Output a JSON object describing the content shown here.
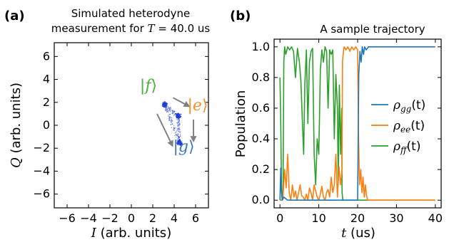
{
  "panels": [
    {
      "panel_label": "(a)",
      "title_line1": "Simulated heterodyne",
      "title_line2_prefix": "measurement for ",
      "title_line2_math": "T",
      "title_line2_suffix": " = 40.0 us"
    },
    {
      "panel_label": "(b)",
      "title": "A sample trajectory"
    }
  ],
  "chart_data": [
    {
      "type": "scatter",
      "title": "Simulated heterodyne measurement for T = 40.0 us",
      "xlabel_var": "I",
      "xlabel_unit": " (arb. units)",
      "ylabel_var": "Q",
      "ylabel_unit": " (arb. units)",
      "xlim": [
        -7.2,
        7.2
      ],
      "ylim": [
        -7.2,
        7.2
      ],
      "xticks": [
        -6,
        -4,
        -2,
        0,
        2,
        4,
        6
      ],
      "yticks": [
        -6,
        -4,
        -2,
        0,
        2,
        4,
        6
      ],
      "xtick_labels": [
        "−6",
        "−4",
        "−2",
        "0",
        "2",
        "4",
        "6"
      ],
      "ytick_labels": [
        "−6",
        "−4",
        "−2",
        "0",
        "2",
        "4",
        "6"
      ],
      "grid": false,
      "point_color": "#1f3fd8",
      "clusters": [
        {
          "x": 3.1,
          "y": 1.8
        },
        {
          "x": 4.4,
          "y": 0.8
        },
        {
          "x": 4.5,
          "y": -1.5
        }
      ],
      "transition_paths": [
        {
          "from": [
            3.1,
            1.8
          ],
          "to": [
            4.4,
            0.8
          ]
        },
        {
          "from": [
            4.4,
            0.8
          ],
          "to": [
            4.5,
            -1.5
          ]
        },
        {
          "from": [
            3.1,
            1.8
          ],
          "to": [
            4.5,
            -1.5
          ]
        }
      ],
      "state_labels": [
        {
          "text": "f",
          "x": 1.6,
          "y": 3.0,
          "color": "#4caf3e"
        },
        {
          "text": "e",
          "x": 6.2,
          "y": 1.3,
          "color": "#f5922f"
        },
        {
          "text": "g",
          "x": 4.9,
          "y": -2.3,
          "color": "#3a7bbf"
        }
      ],
      "arrows": [
        {
          "from": [
            3.9,
            2.4
          ],
          "to": [
            5.5,
            1.6
          ]
        },
        {
          "from": [
            5.8,
            0.5
          ],
          "to": [
            5.8,
            -1.5
          ]
        },
        {
          "from": [
            2.4,
            1.0
          ],
          "to": [
            3.9,
            -1.9
          ]
        }
      ],
      "arrow_color": "#808080"
    },
    {
      "type": "line",
      "title": "A sample trajectory",
      "xlabel_var": "t",
      "xlabel_unit": " (us)",
      "ylabel": "Population",
      "xlim": [
        -1.5,
        41.5
      ],
      "ylim": [
        -0.05,
        1.05
      ],
      "xticks": [
        0,
        10,
        20,
        30,
        40
      ],
      "yticks": [
        0.0,
        0.2,
        0.4,
        0.6,
        0.8,
        1.0
      ],
      "xtick_labels": [
        "0",
        "10",
        "20",
        "30",
        "40"
      ],
      "ytick_labels": [
        "0.0",
        "0.2",
        "0.4",
        "0.6",
        "0.8",
        "1.0"
      ],
      "grid": false,
      "legend_position": "center-right",
      "series": [
        {
          "name_base": "ρ",
          "name_sub": "gg",
          "name_tail": "(t)",
          "color": "#1f77b4",
          "x": [
            0,
            0.2,
            0.4,
            0.6,
            1.0,
            2,
            5,
            10,
            15,
            18,
            20,
            20.3,
            20.6,
            20.9,
            21.2,
            21.5,
            21.8,
            22.2,
            22.8,
            24,
            30,
            40
          ],
          "y": [
            0.0,
            0.21,
            0.05,
            0.0,
            0.02,
            0.0,
            0.0,
            0.0,
            0.0,
            0.0,
            0.0,
            0.82,
            0.97,
            0.9,
            1.0,
            0.95,
            1.0,
            0.98,
            1.0,
            1.0,
            1.0,
            1.0
          ]
        },
        {
          "name_base": "ρ",
          "name_sub": "ee",
          "name_tail": "(t)",
          "color": "#ff7f0e",
          "x": [
            0,
            0.5,
            0.8,
            1.2,
            1.6,
            2.0,
            2.4,
            2.8,
            3.2,
            3.6,
            4.0,
            4.4,
            4.8,
            5.2,
            5.6,
            6.0,
            6.4,
            6.8,
            7.2,
            7.6,
            8.0,
            8.4,
            8.8,
            9.2,
            9.6,
            10.0,
            10.4,
            10.8,
            11.2,
            11.6,
            12.0,
            12.4,
            12.8,
            13.2,
            13.6,
            14.0,
            14.4,
            14.8,
            15.2,
            15.6,
            16.0,
            16.1,
            16.3,
            16.5,
            17.0,
            17.5,
            18.0,
            18.5,
            19.0,
            19.5,
            20.0,
            20.2,
            20.5,
            20.8,
            21.1,
            21.4,
            21.7,
            22.0,
            22.3,
            22.6,
            23,
            30,
            40
          ],
          "y": [
            0.0,
            0.0,
            0.02,
            0.2,
            0.08,
            0.3,
            0.05,
            0.0,
            0.1,
            0.02,
            0.06,
            0.0,
            0.05,
            0.1,
            0.03,
            0.02,
            0.0,
            0.04,
            0.0,
            0.08,
            0.05,
            0.0,
            0.1,
            0.06,
            0.02,
            0.0,
            0.04,
            0.09,
            0.02,
            0.0,
            0.05,
            0.07,
            0.02,
            0.15,
            0.05,
            0.1,
            0.3,
            0.02,
            0.22,
            0.1,
            0.2,
            0.9,
            0.96,
            1.0,
            0.98,
            1.0,
            0.97,
            1.0,
            0.98,
            1.0,
            0.98,
            0.45,
            0.1,
            0.2,
            0.05,
            0.15,
            0.02,
            0.1,
            0.03,
            0.0,
            0.0,
            0.0,
            0.0
          ]
        },
        {
          "name_base": "ρ",
          "name_sub": "ff",
          "name_tail": "(t)",
          "color": "#2ca02c",
          "x": [
            0,
            0.2,
            0.4,
            0.6,
            0.8,
            1.0,
            1.2,
            1.5,
            2.0,
            2.5,
            3.0,
            3.5,
            4.0,
            4.5,
            5.0,
            5.4,
            5.8,
            6.1,
            6.4,
            6.8,
            7.2,
            7.6,
            8.0,
            8.4,
            8.8,
            9.2,
            9.6,
            10.0,
            10.4,
            10.8,
            11.2,
            11.6,
            12.0,
            12.4,
            12.8,
            13.2,
            13.6,
            14.0,
            14.4,
            14.8,
            15.0,
            15.3,
            15.6,
            15.9,
            16.0,
            16.2,
            16.5,
            17,
            18,
            19,
            20,
            20.5,
            21,
            21.5,
            22,
            23,
            30,
            40
          ],
          "y": [
            0.8,
            0.5,
            0.1,
            0.0,
            0.05,
            0.9,
            1.0,
            0.95,
            1.0,
            0.98,
            1.0,
            0.97,
            0.8,
            0.99,
            0.9,
            0.78,
            0.5,
            0.3,
            0.75,
            0.98,
            0.5,
            0.9,
            0.97,
            0.99,
            0.3,
            0.1,
            0.4,
            0.3,
            0.85,
            0.98,
            0.9,
            1.0,
            0.97,
            0.6,
            0.98,
            0.95,
            0.98,
            0.4,
            0.82,
            0.6,
            0.1,
            0.75,
            0.3,
            0.6,
            0.05,
            0.0,
            0.0,
            0.0,
            0.0,
            0.0,
            0.0,
            0.0,
            0.0,
            0.0,
            0.0,
            0.0,
            0.0,
            0.0
          ]
        }
      ]
    }
  ]
}
